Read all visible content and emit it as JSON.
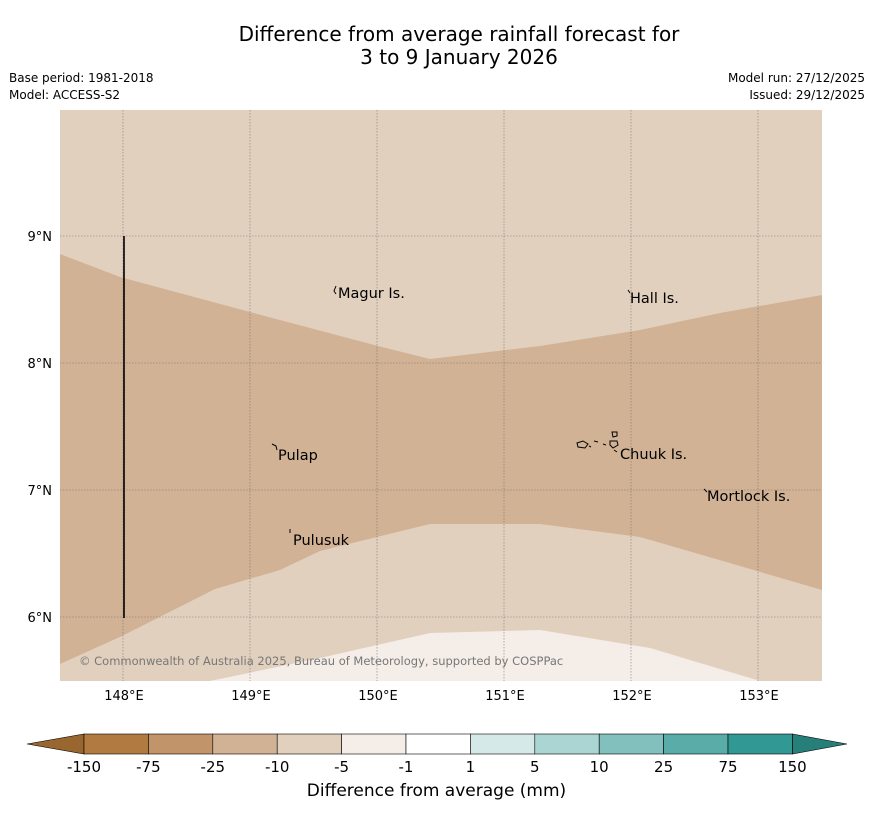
{
  "title": {
    "line1": "Difference from average rainfall forecast for",
    "line2": "3 to 9 January 2026"
  },
  "meta": {
    "base_period": "Base period: 1981-2018",
    "model": "Model: ACCESS-S2",
    "model_run": "Model run: 27/12/2025",
    "issued": "Issued: 29/12/2025"
  },
  "map": {
    "lat_ticks": [
      "9°N",
      "8°N",
      "7°N",
      "6°N"
    ],
    "lon_ticks": [
      "148°E",
      "149°E",
      "150°E",
      "151°E",
      "152°E",
      "153°E"
    ],
    "places": [
      {
        "name": "Magur Is."
      },
      {
        "name": "Hall Is."
      },
      {
        "name": "Pulap"
      },
      {
        "name": "Chuuk Is."
      },
      {
        "name": "Mortlock Is."
      },
      {
        "name": "Pulusuk"
      }
    ],
    "copyright": "© Commonwealth of Australia 2025, Bureau of Meteorology, supported by COSPPac"
  },
  "colorbar": {
    "title": "Difference from average (mm)",
    "labels": [
      "-150",
      "-75",
      "-25",
      "-10",
      "-5",
      "-1",
      "1",
      "5",
      "10",
      "25",
      "75",
      "150"
    ],
    "colors": [
      "#b17a40",
      "#c1946a",
      "#d1b295",
      "#e2d0bf",
      "#f4ede8",
      "#ffffff",
      "#d5eae8",
      "#abd5d3",
      "#82c0bd",
      "#59aca8",
      "#319894"
    ],
    "extend_low": "#9a6630",
    "extend_high": "#277f7a"
  }
}
